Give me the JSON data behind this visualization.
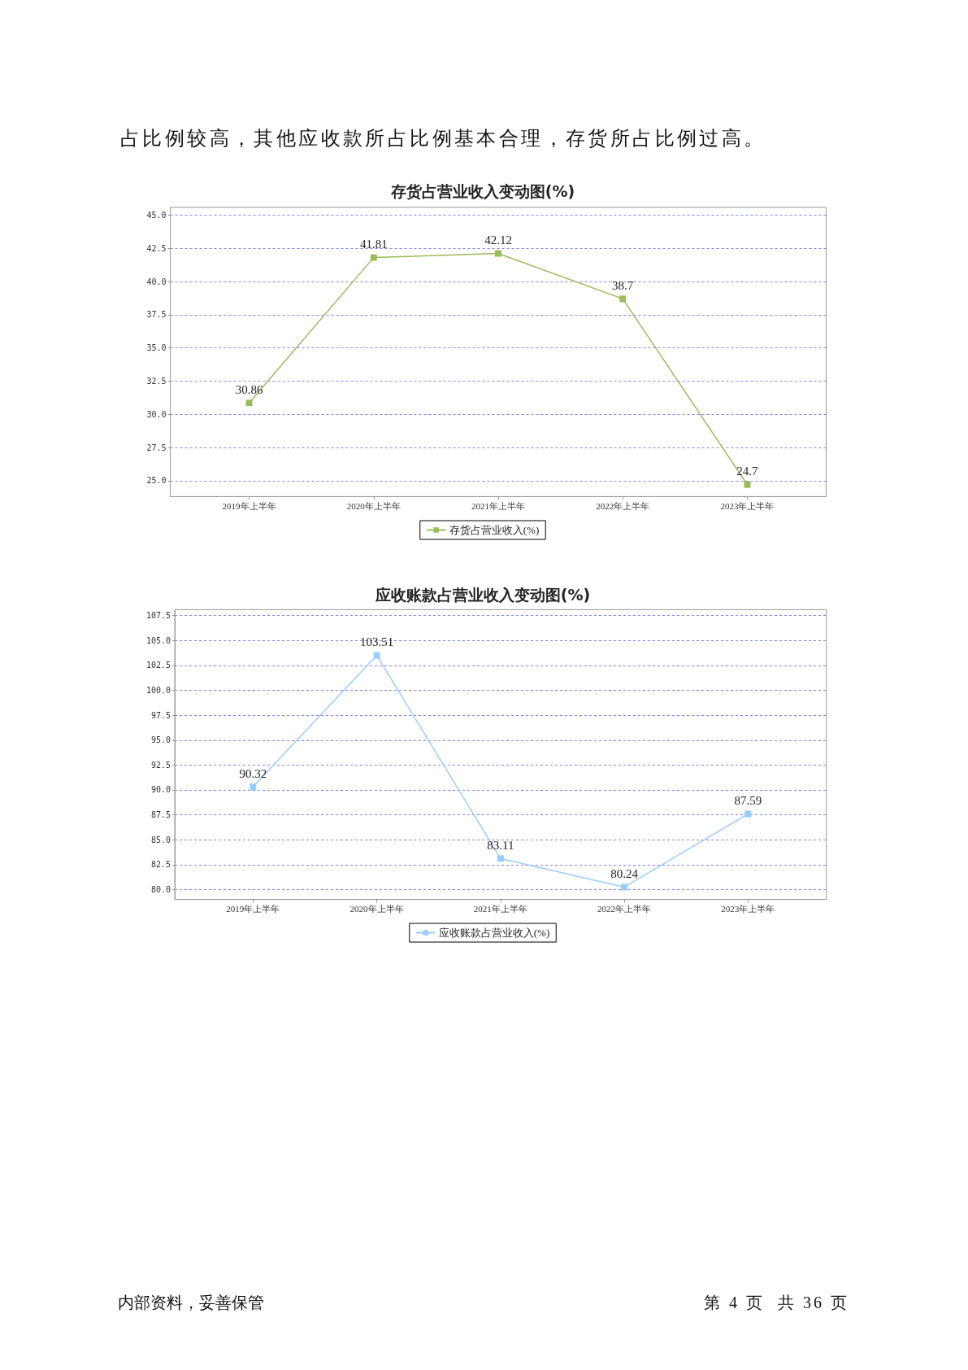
{
  "chart_data": [
    {
      "type": "line",
      "title": "存货占营业收入变动图(%)",
      "annotations": [
        "占比例较高，其他应收款所占比例基本合理，存货所占比例过高。"
      ],
      "categories": [
        "2019年上半年",
        "2020年上半年",
        "2021年上半年",
        "2022年上半年",
        "2023年上半年"
      ],
      "series": [
        {
          "name": "存货占营业收入(%)",
          "color": "#9bbb59",
          "values": [
            30.86,
            41.81,
            42.12,
            38.7,
            24.7
          ]
        }
      ],
      "ylim": [
        23.8,
        45.6
      ],
      "yticks": [
        {
          "value": 25,
          "label": "25.0"
        },
        {
          "value": 27.5,
          "label": "27.5"
        },
        {
          "value": 30,
          "label": "30.0"
        },
        {
          "value": 32.5,
          "label": "32.5"
        },
        {
          "value": 35,
          "label": "35.0"
        },
        {
          "value": 37.5,
          "label": "37.5"
        },
        {
          "value": 40,
          "label": "40.0"
        },
        {
          "value": 42.5,
          "label": "42.5"
        },
        {
          "value": 45,
          "label": "45.0"
        }
      ],
      "grid": "y",
      "legend": "bottom",
      "marker": "square",
      "data_labels": true
    },
    {
      "type": "line",
      "title": "应收账款占营业收入变动图(%)",
      "annotations": [
        "内部资料，妥善保管",
        "第 4 页  共 36 页"
      ],
      "categories": [
        "2019年上半年",
        "2020年上半年",
        "2021年上半年",
        "2022年上半年",
        "2023年上半年"
      ],
      "series": [
        {
          "name": "应收账款占营业收入(%)",
          "color": "#99ccff",
          "values": [
            90.32,
            103.51,
            83.11,
            80.24,
            87.59
          ]
        }
      ],
      "ylim": [
        79.0,
        108.1
      ],
      "yticks": [
        {
          "value": 80,
          "label": "80.0"
        },
        {
          "value": 82.5,
          "label": "82.5"
        },
        {
          "value": 85,
          "label": "85.0"
        },
        {
          "value": 87.5,
          "label": "87.5"
        },
        {
          "value": 90,
          "label": "90.0"
        },
        {
          "value": 92.5,
          "label": "92.5"
        },
        {
          "value": 95,
          "label": "95.0"
        },
        {
          "value": 97.5,
          "label": "97.5"
        },
        {
          "value": 100,
          "label": "100.0"
        },
        {
          "value": 102.5,
          "label": "102.5"
        },
        {
          "value": 105,
          "label": "105.0"
        },
        {
          "value": 107.5,
          "label": "107.5"
        }
      ],
      "grid": "y",
      "legend": "bottom",
      "marker": "square",
      "data_labels": true
    }
  ]
}
